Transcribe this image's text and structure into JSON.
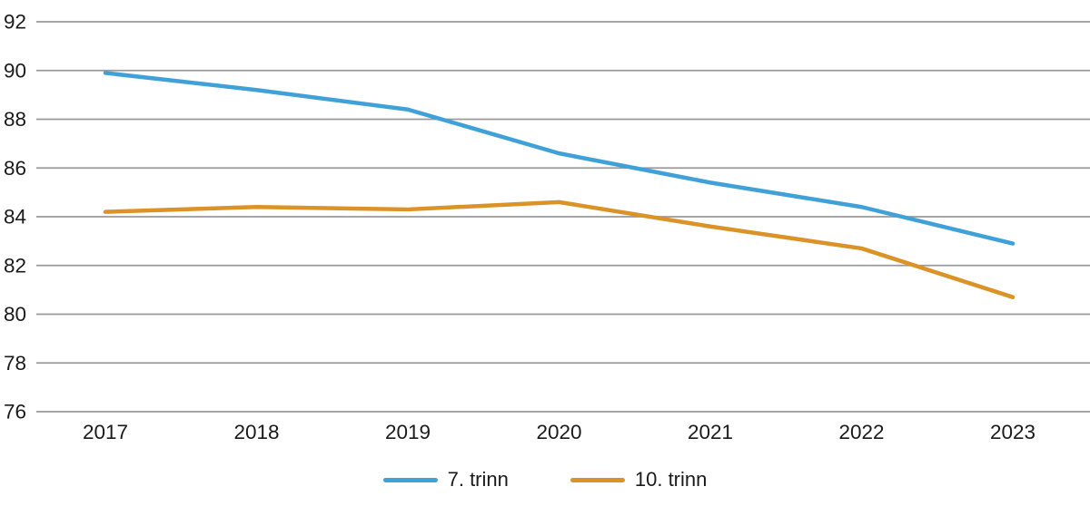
{
  "chart_data": {
    "type": "line",
    "title": "",
    "xlabel": "",
    "ylabel": "",
    "x": [
      "2017",
      "2018",
      "2019",
      "2020",
      "2021",
      "2022",
      "2023"
    ],
    "series": [
      {
        "name": "7. trinn",
        "color": "#3FA1D8",
        "values": [
          89.9,
          89.2,
          88.4,
          86.6,
          85.4,
          84.4,
          82.9
        ]
      },
      {
        "name": "10. trinn",
        "color": "#DB9226",
        "values": [
          84.2,
          84.4,
          84.3,
          84.6,
          83.6,
          82.7,
          80.7
        ]
      }
    ],
    "ylim": [
      76,
      92
    ],
    "ytick_step": 2,
    "ytick_labels": [
      "76",
      "78",
      "80",
      "82",
      "84",
      "86",
      "88",
      "90",
      "92"
    ],
    "grid": "horizontal",
    "gridline_color": "#9A9A9A",
    "text_color": "#1A1A1A",
    "line_width": 4.5,
    "legend_position": "bottom"
  }
}
